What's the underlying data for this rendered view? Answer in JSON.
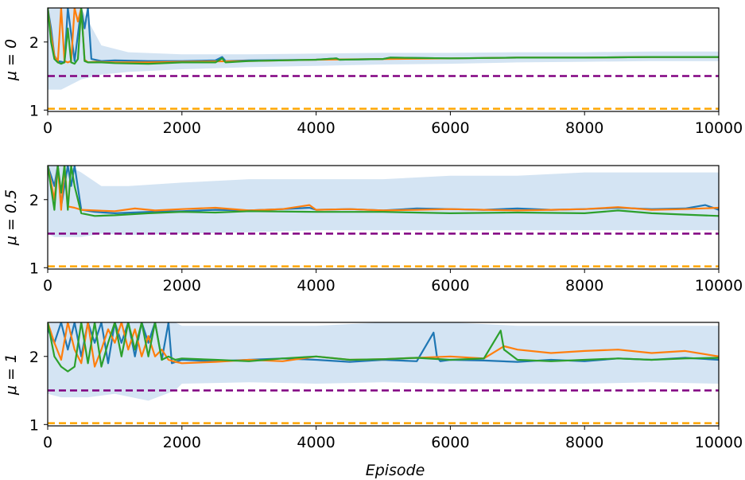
{
  "chart_data": [
    {
      "type": "line",
      "ylabel": "μ = 0",
      "xlabel": "",
      "xlim": [
        0,
        10000
      ],
      "ylim": [
        0.98,
        2.5
      ],
      "xticks": [
        "0",
        "2000",
        "4000",
        "6000",
        "8000",
        "10000"
      ],
      "yticks": [
        "1",
        "2"
      ],
      "hlines": [
        {
          "y": 1.5,
          "color": "#800080",
          "style": "dashed"
        },
        {
          "y": 1.02,
          "color": "#ffa500",
          "style": "dashed"
        }
      ],
      "band": {
        "color": "#c6dbef",
        "x": [
          0,
          100,
          200,
          300,
          500,
          800,
          1200,
          2000,
          3000,
          4000,
          5000,
          6000,
          7000,
          8000,
          9000,
          10000
        ],
        "upper": [
          2.5,
          2.5,
          2.5,
          2.5,
          2.5,
          1.95,
          1.85,
          1.82,
          1.82,
          1.83,
          1.84,
          1.84,
          1.85,
          1.85,
          1.86,
          1.86
        ],
        "lower": [
          1.3,
          1.3,
          1.3,
          1.35,
          1.45,
          1.52,
          1.56,
          1.6,
          1.63,
          1.65,
          1.67,
          1.68,
          1.7,
          1.71,
          1.72,
          1.72
        ]
      },
      "series": [
        {
          "color": "#1f77b4",
          "x": [
            0,
            50,
            100,
            150,
            250,
            300,
            400,
            500,
            550,
            600,
            650,
            800,
            1000,
            1500,
            2000,
            2500,
            2600,
            2650,
            3000,
            4000,
            4300,
            4350,
            5000,
            5100,
            6000,
            7000,
            8000,
            9000,
            10000
          ],
          "y": [
            2.5,
            2.2,
            1.8,
            1.72,
            1.7,
            2.5,
            1.72,
            2.5,
            2.2,
            2.5,
            1.75,
            1.72,
            1.73,
            1.72,
            1.72,
            1.73,
            1.78,
            1.72,
            1.73,
            1.74,
            1.76,
            1.74,
            1.75,
            1.77,
            1.76,
            1.77,
            1.77,
            1.78,
            1.78
          ]
        },
        {
          "color": "#ff7f0e",
          "x": [
            0,
            50,
            100,
            150,
            200,
            250,
            300,
            350,
            400,
            450,
            500,
            550,
            600,
            700,
            1000,
            1500,
            2000,
            3000,
            4000,
            5000,
            6000,
            7000,
            8000,
            9000,
            10000
          ],
          "y": [
            2.5,
            2.1,
            1.8,
            1.7,
            2.5,
            1.72,
            1.7,
            1.72,
            2.5,
            2.3,
            2.5,
            1.74,
            1.7,
            1.71,
            1.7,
            1.7,
            1.71,
            1.72,
            1.74,
            1.75,
            1.76,
            1.77,
            1.77,
            1.78,
            1.78
          ]
        },
        {
          "color": "#2ca02c",
          "x": [
            0,
            50,
            100,
            150,
            200,
            250,
            300,
            350,
            400,
            450,
            500,
            550,
            600,
            800,
            1000,
            1500,
            2000,
            2500,
            2600,
            2650,
            3000,
            4000,
            4300,
            4350,
            5000,
            5100,
            6000,
            7000,
            8000,
            9000,
            10000
          ],
          "y": [
            2.5,
            2.0,
            1.75,
            1.7,
            1.68,
            1.7,
            2.2,
            1.7,
            1.68,
            1.75,
            2.5,
            1.72,
            1.7,
            1.7,
            1.69,
            1.68,
            1.7,
            1.7,
            1.76,
            1.7,
            1.72,
            1.74,
            1.76,
            1.74,
            1.75,
            1.77,
            1.76,
            1.77,
            1.77,
            1.78,
            1.78
          ]
        }
      ]
    },
    {
      "type": "line",
      "ylabel": "μ = 0.5",
      "xlabel": "",
      "xlim": [
        0,
        10000
      ],
      "ylim": [
        0.98,
        2.5
      ],
      "xticks": [
        "0",
        "2000",
        "4000",
        "6000",
        "8000",
        "10000"
      ],
      "yticks": [
        "1",
        "2"
      ],
      "hlines": [
        {
          "y": 1.5,
          "color": "#800080",
          "style": "dashed"
        },
        {
          "y": 1.02,
          "color": "#ffa500",
          "style": "dashed"
        }
      ],
      "band": {
        "color": "#c6dbef",
        "x": [
          0,
          100,
          300,
          500,
          800,
          1200,
          2000,
          3000,
          4000,
          5000,
          6000,
          7000,
          8000,
          9000,
          10000
        ],
        "upper": [
          2.5,
          2.5,
          2.5,
          2.4,
          2.2,
          2.2,
          2.25,
          2.3,
          2.3,
          2.3,
          2.35,
          2.35,
          2.4,
          2.4,
          2.4
        ],
        "lower": [
          1.5,
          1.45,
          1.45,
          1.45,
          1.5,
          1.48,
          1.5,
          1.52,
          1.55,
          1.55,
          1.55,
          1.55,
          1.55,
          1.55,
          1.55
        ]
      },
      "series": [
        {
          "color": "#1f77b4",
          "x": [
            0,
            100,
            150,
            200,
            300,
            350,
            400,
            500,
            700,
            1000,
            1500,
            2000,
            2500,
            3000,
            3500,
            3900,
            4000,
            4500,
            5000,
            5500,
            6000,
            6500,
            7000,
            7500,
            8000,
            8500,
            9000,
            9500,
            9800,
            10000
          ],
          "y": [
            2.5,
            2.2,
            2.5,
            1.9,
            2.5,
            2.2,
            2.5,
            1.85,
            1.82,
            1.8,
            1.82,
            1.83,
            1.85,
            1.84,
            1.86,
            1.88,
            1.85,
            1.86,
            1.84,
            1.87,
            1.86,
            1.85,
            1.87,
            1.85,
            1.86,
            1.88,
            1.86,
            1.87,
            1.92,
            1.85
          ]
        },
        {
          "color": "#ff7f0e",
          "x": [
            0,
            100,
            150,
            200,
            250,
            300,
            400,
            500,
            700,
            1000,
            1300,
            1600,
            2000,
            2500,
            3000,
            3500,
            3900,
            4000,
            4500,
            5000,
            5500,
            6000,
            6500,
            7000,
            7500,
            8000,
            8500,
            9000,
            9500,
            10000
          ],
          "y": [
            2.5,
            2.0,
            2.5,
            1.85,
            2.5,
            1.9,
            1.88,
            1.85,
            1.84,
            1.83,
            1.87,
            1.84,
            1.86,
            1.88,
            1.84,
            1.86,
            1.92,
            1.85,
            1.86,
            1.84,
            1.85,
            1.86,
            1.85,
            1.84,
            1.85,
            1.86,
            1.89,
            1.85,
            1.86,
            1.88
          ]
        },
        {
          "color": "#2ca02c",
          "x": [
            0,
            100,
            150,
            200,
            250,
            300,
            350,
            400,
            500,
            700,
            1000,
            1500,
            2000,
            2500,
            3000,
            4000,
            5000,
            6000,
            7000,
            8000,
            8500,
            9000,
            9500,
            10000
          ],
          "y": [
            2.5,
            1.85,
            2.5,
            2.1,
            2.5,
            1.85,
            2.5,
            2.2,
            1.8,
            1.76,
            1.77,
            1.8,
            1.82,
            1.81,
            1.83,
            1.82,
            1.82,
            1.8,
            1.81,
            1.8,
            1.84,
            1.8,
            1.78,
            1.76
          ]
        }
      ]
    },
    {
      "type": "line",
      "ylabel": "μ = 1",
      "xlabel": "Episode",
      "xlim": [
        0,
        10000
      ],
      "ylim": [
        0.98,
        2.5
      ],
      "xticks": [
        "0",
        "2000",
        "4000",
        "6000",
        "8000",
        "10000"
      ],
      "yticks": [
        "1",
        "2"
      ],
      "hlines": [
        {
          "y": 1.5,
          "color": "#800080",
          "style": "dashed"
        },
        {
          "y": 1.02,
          "color": "#ffa500",
          "style": "dashed"
        }
      ],
      "band": {
        "color": "#c6dbef",
        "x": [
          0,
          200,
          600,
          1000,
          1500,
          1900,
          2000,
          3000,
          4000,
          5000,
          6000,
          7000,
          8000,
          9000,
          10000
        ],
        "upper": [
          2.5,
          2.5,
          2.5,
          2.5,
          2.5,
          2.5,
          2.45,
          2.45,
          2.45,
          2.5,
          2.5,
          2.45,
          2.45,
          2.45,
          2.45
        ],
        "lower": [
          1.45,
          1.4,
          1.4,
          1.45,
          1.35,
          1.5,
          1.6,
          1.62,
          1.6,
          1.62,
          1.6,
          1.6,
          1.6,
          1.62,
          1.6
        ]
      },
      "series": [
        {
          "color": "#1f77b4",
          "x": [
            0,
            100,
            200,
            300,
            400,
            500,
            600,
            700,
            800,
            900,
            1000,
            1100,
            1200,
            1300,
            1400,
            1500,
            1600,
            1700,
            1800,
            1850,
            2000,
            2500,
            3000,
            3500,
            4000,
            4500,
            5000,
            5500,
            5750,
            5800,
            5850,
            6000,
            6500,
            7000,
            7500,
            8000,
            8500,
            9000,
            9500,
            10000
          ],
          "y": [
            2.4,
            2.2,
            2.5,
            2.1,
            2.5,
            2.0,
            2.5,
            2.2,
            2.5,
            1.9,
            2.5,
            2.2,
            2.5,
            2.0,
            2.5,
            2.2,
            2.5,
            1.95,
            2.5,
            1.9,
            1.95,
            1.93,
            1.95,
            1.97,
            1.95,
            1.92,
            1.95,
            1.93,
            2.35,
            2.0,
            1.93,
            1.95,
            1.94,
            1.92,
            1.95,
            1.93,
            1.97,
            1.95,
            1.98,
            1.95
          ]
        },
        {
          "color": "#ff7f0e",
          "x": [
            0,
            100,
            200,
            300,
            400,
            500,
            600,
            700,
            800,
            900,
            1000,
            1100,
            1200,
            1300,
            1400,
            1500,
            1600,
            1700,
            1800,
            1900,
            2000,
            2500,
            3000,
            3500,
            4000,
            4500,
            5000,
            5500,
            6000,
            6500,
            6800,
            7000,
            7500,
            8000,
            8500,
            9000,
            9500,
            10000
          ],
          "y": [
            2.5,
            2.2,
            1.95,
            2.5,
            2.1,
            1.9,
            2.5,
            1.85,
            2.1,
            2.4,
            2.2,
            2.5,
            2.1,
            2.4,
            2.0,
            2.3,
            2.0,
            2.1,
            1.95,
            1.92,
            1.9,
            1.92,
            1.95,
            1.93,
            2.0,
            1.95,
            1.96,
            1.98,
            2.0,
            1.97,
            2.15,
            2.1,
            2.05,
            2.08,
            2.1,
            2.05,
            2.08,
            2.0
          ]
        },
        {
          "color": "#2ca02c",
          "x": [
            0,
            100,
            200,
            300,
            400,
            500,
            600,
            700,
            800,
            900,
            1000,
            1100,
            1200,
            1300,
            1400,
            1500,
            1600,
            1700,
            1800,
            1900,
            2000,
            2500,
            3000,
            3500,
            4000,
            4500,
            5000,
            5500,
            6000,
            6500,
            6750,
            6800,
            7000,
            7500,
            8000,
            8500,
            9000,
            9500,
            10000
          ],
          "y": [
            2.5,
            2.0,
            1.85,
            1.78,
            1.85,
            2.5,
            1.9,
            2.5,
            1.85,
            2.2,
            2.5,
            2.0,
            2.5,
            2.1,
            2.5,
            2.0,
            2.5,
            1.95,
            2.0,
            1.95,
            1.97,
            1.95,
            1.93,
            1.97,
            2.0,
            1.95,
            1.96,
            1.98,
            1.95,
            1.97,
            2.38,
            2.1,
            1.95,
            1.93,
            1.95,
            1.97,
            1.95,
            1.97,
            1.98
          ]
        }
      ]
    }
  ]
}
